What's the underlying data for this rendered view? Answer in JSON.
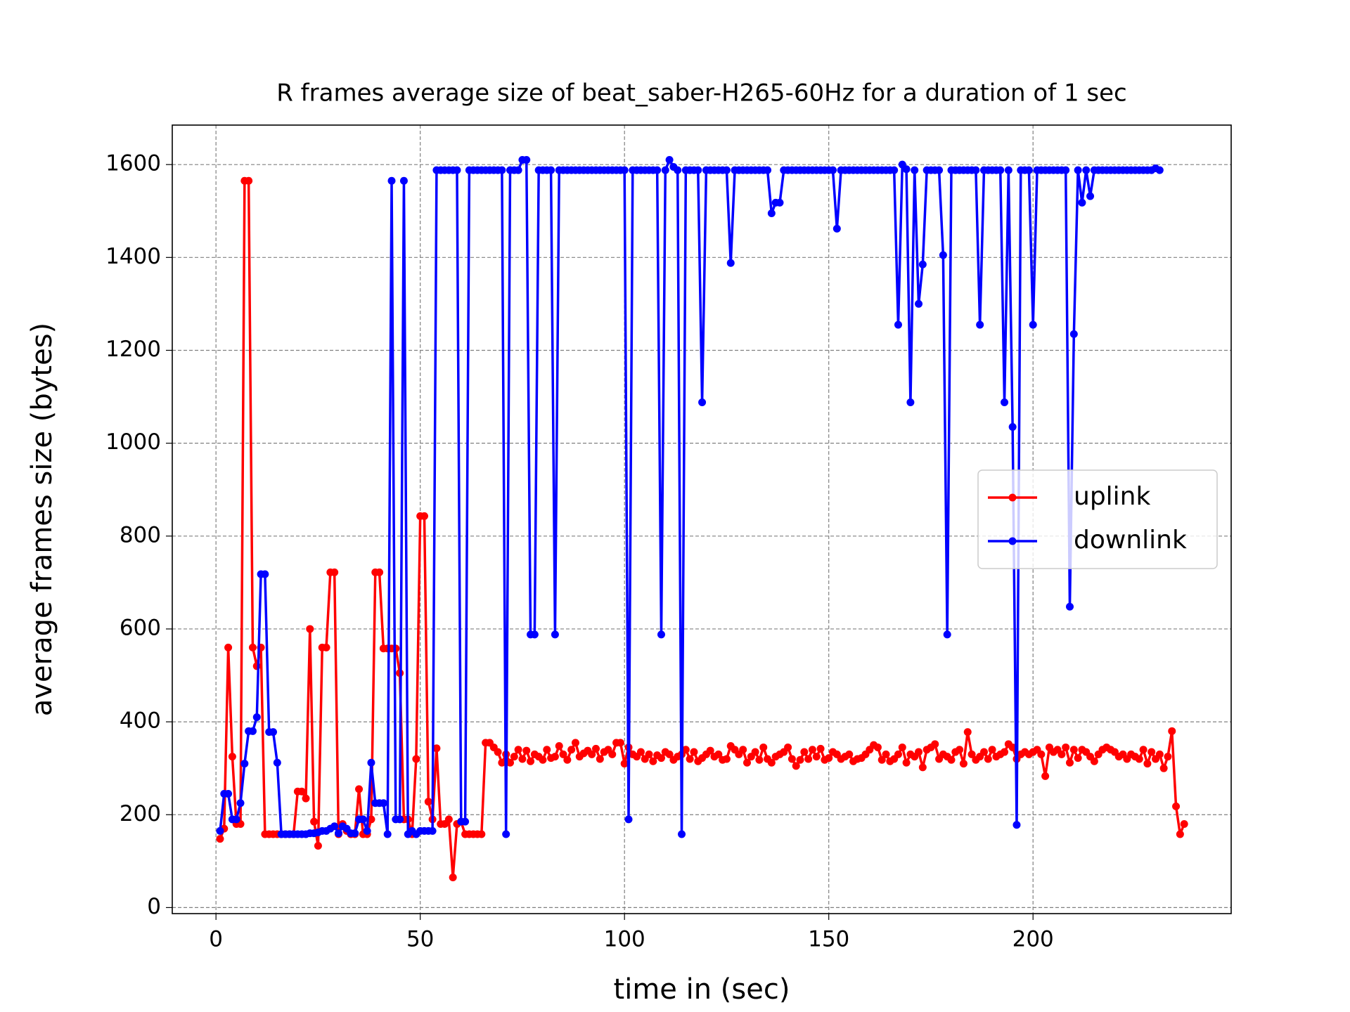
{
  "chart_data": {
    "type": "line",
    "title": "R frames average size of beat_saber-H265-60Hz for a duration of 1 sec",
    "x_label": "time in (sec)",
    "y_label": "average frames size (bytes)",
    "xlim": [
      -10.7,
      248.5
    ],
    "ylim": [
      -13,
      1685
    ],
    "xticks": [
      0,
      50,
      100,
      150,
      200
    ],
    "yticks": [
      0,
      200,
      400,
      600,
      800,
      1000,
      1200,
      1400,
      1600
    ],
    "grid": true,
    "legend": "center right",
    "series": [
      {
        "name": "uplink",
        "color": "#ff0000",
        "x": [
          1,
          2,
          3,
          4,
          5,
          6,
          7,
          8,
          9,
          10,
          11,
          12,
          13,
          14,
          15,
          16,
          17,
          18,
          19,
          20,
          21,
          22,
          23,
          24,
          25,
          26,
          27,
          28,
          29,
          30,
          31,
          32,
          33,
          34,
          35,
          36,
          37,
          38,
          39,
          40,
          41,
          42,
          43,
          44,
          45,
          46,
          47,
          48,
          49,
          50,
          51,
          52,
          53,
          54,
          55,
          56,
          57,
          58,
          59,
          60,
          61,
          62,
          63,
          64,
          65,
          66,
          67,
          68,
          69,
          70,
          71,
          72,
          73,
          74,
          75,
          76,
          77,
          78,
          79,
          80,
          81,
          82,
          83,
          84,
          85,
          86,
          87,
          88,
          89,
          90,
          91,
          92,
          93,
          94,
          95,
          96,
          97,
          98,
          99,
          100,
          101,
          102,
          103,
          104,
          105,
          106,
          107,
          108,
          109,
          110,
          111,
          112,
          113,
          114,
          115,
          116,
          117,
          118,
          119,
          120,
          121,
          122,
          123,
          124,
          125,
          126,
          127,
          128,
          129,
          130,
          131,
          132,
          133,
          134,
          135,
          136,
          137,
          138,
          139,
          140,
          141,
          142,
          143,
          144,
          145,
          146,
          147,
          148,
          149,
          150,
          151,
          152,
          153,
          154,
          155,
          156,
          157,
          158,
          159,
          160,
          161,
          162,
          163,
          164,
          165,
          166,
          167,
          168,
          169,
          170,
          171,
          172,
          173,
          174,
          175,
          176,
          177,
          178,
          179,
          180,
          181,
          182,
          183,
          184,
          185,
          186,
          187,
          188,
          189,
          190,
          191,
          192,
          193,
          194,
          195,
          196,
          197,
          198,
          199,
          200,
          201,
          202,
          203,
          204,
          205,
          206,
          207,
          208,
          209,
          210,
          211,
          212,
          213,
          214,
          215,
          216,
          217,
          218,
          219,
          220,
          221,
          222,
          223,
          224,
          225,
          226,
          227,
          228,
          229,
          230,
          231,
          232,
          233,
          234,
          235,
          236,
          237
        ],
        "values": [
          148,
          170,
          560,
          325,
          180,
          180,
          1565,
          1565,
          560,
          520,
          560,
          158,
          158,
          158,
          158,
          158,
          158,
          158,
          158,
          250,
          250,
          235,
          600,
          185,
          133,
          560,
          560,
          722,
          722,
          158,
          180,
          165,
          158,
          158,
          255,
          158,
          158,
          190,
          722,
          722,
          558,
          558,
          558,
          558,
          505,
          190,
          190,
          158,
          320,
          843,
          843,
          228,
          190,
          343,
          180,
          180,
          190,
          65,
          180,
          185,
          158,
          158,
          158,
          158,
          158,
          355,
          355,
          345,
          335,
          312,
          330,
          312,
          325,
          340,
          320,
          338,
          315,
          330,
          325,
          318,
          340,
          322,
          325,
          348,
          330,
          318,
          340,
          355,
          325,
          332,
          338,
          330,
          342,
          320,
          335,
          340,
          330,
          355,
          355,
          310,
          345,
          330,
          325,
          335,
          320,
          330,
          315,
          328,
          322,
          335,
          330,
          318,
          325,
          330,
          340,
          320,
          335,
          315,
          322,
          330,
          338,
          325,
          330,
          318,
          320,
          348,
          340,
          330,
          340,
          312,
          325,
          335,
          318,
          345,
          320,
          312,
          325,
          330,
          335,
          345,
          320,
          305,
          318,
          335,
          320,
          340,
          325,
          342,
          318,
          322,
          335,
          330,
          320,
          325,
          330,
          315,
          320,
          322,
          330,
          340,
          350,
          345,
          318,
          330,
          315,
          320,
          330,
          345,
          312,
          330,
          325,
          335,
          302,
          340,
          345,
          352,
          320,
          330,
          325,
          318,
          335,
          340,
          310,
          378,
          330,
          318,
          325,
          335,
          320,
          340,
          325,
          330,
          335,
          352,
          345,
          320,
          330,
          335,
          330,
          335,
          340,
          330,
          283,
          345,
          335,
          340,
          330,
          345,
          312,
          340,
          322,
          340,
          335,
          325,
          315,
          330,
          340,
          345,
          340,
          335,
          325,
          330,
          320,
          330,
          325,
          320,
          340,
          310,
          335,
          320,
          330,
          300,
          325,
          380,
          218,
          158,
          180
        ]
      },
      {
        "name": "downlink",
        "color": "#0000ff",
        "x": [
          1,
          2,
          3,
          4,
          5,
          6,
          7,
          8,
          9,
          10,
          11,
          12,
          13,
          14,
          15,
          16,
          17,
          18,
          19,
          20,
          21,
          22,
          23,
          24,
          25,
          26,
          27,
          28,
          29,
          30,
          31,
          32,
          33,
          34,
          35,
          36,
          37,
          38,
          39,
          40,
          41,
          42,
          43,
          44,
          45,
          46,
          47,
          48,
          49,
          50,
          51,
          52,
          53,
          54,
          55,
          56,
          57,
          58,
          59,
          60,
          61,
          62,
          63,
          64,
          65,
          66,
          67,
          68,
          69,
          70,
          71,
          72,
          73,
          74,
          75,
          76,
          77,
          78,
          79,
          80,
          81,
          82,
          83,
          84,
          85,
          86,
          87,
          88,
          89,
          90,
          91,
          92,
          93,
          94,
          95,
          96,
          97,
          98,
          99,
          100,
          101,
          102,
          103,
          104,
          105,
          106,
          107,
          108,
          109,
          110,
          111,
          112,
          113,
          114,
          115,
          116,
          117,
          118,
          119,
          120,
          121,
          122,
          123,
          124,
          125,
          126,
          127,
          128,
          129,
          130,
          131,
          132,
          133,
          134,
          135,
          136,
          137,
          138,
          139,
          140,
          141,
          142,
          143,
          144,
          145,
          146,
          147,
          148,
          149,
          150,
          151,
          152,
          153,
          154,
          155,
          156,
          157,
          158,
          159,
          160,
          161,
          162,
          163,
          164,
          165,
          166,
          167,
          168,
          169,
          170,
          171,
          172,
          173,
          174,
          175,
          176,
          177,
          178,
          179,
          180,
          181,
          182,
          183,
          184,
          185,
          186,
          187,
          188,
          189,
          190,
          191,
          192,
          193,
          194,
          195,
          196,
          197,
          198,
          199,
          200,
          201,
          202,
          203,
          204,
          205,
          206,
          207,
          208,
          209,
          210,
          211,
          212,
          213,
          214,
          215,
          216,
          217,
          218,
          219,
          220,
          221,
          222,
          223,
          224,
          225,
          226,
          227,
          228,
          229,
          230,
          231
        ],
        "values": [
          165,
          245,
          245,
          190,
          190,
          225,
          310,
          380,
          380,
          410,
          718,
          718,
          378,
          378,
          312,
          158,
          158,
          158,
          158,
          158,
          158,
          158,
          160,
          160,
          162,
          165,
          165,
          170,
          175,
          160,
          175,
          170,
          160,
          160,
          190,
          190,
          165,
          312,
          225,
          225,
          225,
          158,
          1565,
          190,
          190,
          1565,
          158,
          165,
          158,
          165,
          165,
          165,
          165,
          1588,
          1588,
          1588,
          1588,
          1588,
          1588,
          185,
          185,
          1588,
          1588,
          1588,
          1588,
          1588,
          1588,
          1588,
          1588,
          1588,
          158,
          1588,
          1588,
          1588,
          1610,
          1610,
          588,
          588,
          1588,
          1588,
          1588,
          1588,
          588,
          1588,
          1588,
          1588,
          1588,
          1588,
          1588,
          1588,
          1588,
          1588,
          1588,
          1588,
          1588,
          1588,
          1588,
          1588,
          1588,
          1588,
          190,
          1588,
          1588,
          1588,
          1588,
          1588,
          1588,
          1588,
          588,
          1588,
          1610,
          1595,
          1588,
          158,
          1588,
          1588,
          1588,
          1588,
          1088,
          1588,
          1588,
          1588,
          1588,
          1588,
          1588,
          1388,
          1588,
          1588,
          1588,
          1588,
          1588,
          1588,
          1588,
          1588,
          1588,
          1495,
          1518,
          1518,
          1588,
          1588,
          1588,
          1588,
          1588,
          1588,
          1588,
          1588,
          1588,
          1588,
          1588,
          1588,
          1588,
          1462,
          1588,
          1588,
          1588,
          1588,
          1588,
          1588,
          1588,
          1588,
          1588,
          1588,
          1588,
          1588,
          1588,
          1588,
          1255,
          1600,
          1590,
          1088,
          1588,
          1300,
          1385,
          1588,
          1588,
          1588,
          1588,
          1405,
          588,
          1588,
          1588,
          1588,
          1588,
          1588,
          1588,
          1588,
          1255,
          1588,
          1588,
          1588,
          1588,
          1588,
          1088,
          1588,
          1035,
          178,
          1588,
          1588,
          1588,
          1255,
          1588,
          1588,
          1588,
          1588,
          1588,
          1588,
          1588,
          1588,
          648,
          1235,
          1588,
          1518,
          1588,
          1532,
          1588,
          1588,
          1588,
          1588,
          1588,
          1588,
          1588,
          1588,
          1588,
          1588,
          1588,
          1588,
          1588,
          1588,
          1588,
          1592,
          1588
        ]
      }
    ]
  }
}
